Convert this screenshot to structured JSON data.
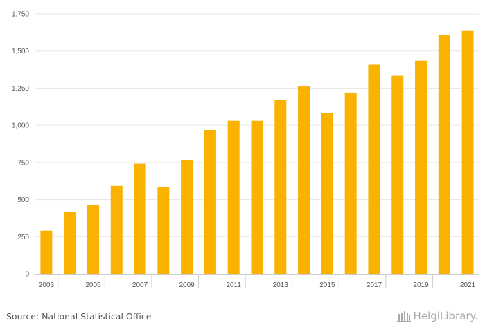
{
  "chart_data": {
    "type": "bar",
    "title": "",
    "xlabel": "",
    "ylabel": "",
    "categories": [
      "2003",
      "2004",
      "2005",
      "2006",
      "2007",
      "2008",
      "2009",
      "2010",
      "2011",
      "2012",
      "2013",
      "2014",
      "2015",
      "2016",
      "2017",
      "2018",
      "2019",
      "2020",
      "2021"
    ],
    "x_tick_labels": [
      "2003",
      "2005",
      "2007",
      "2009",
      "2011",
      "2013",
      "2015",
      "2017",
      "2019",
      "2021"
    ],
    "values": [
      290,
      415,
      462,
      592,
      742,
      582,
      765,
      968,
      1030,
      1030,
      1173,
      1265,
      1080,
      1220,
      1408,
      1333,
      1435,
      1610,
      1635
    ],
    "ylim": [
      0,
      1750
    ],
    "y_ticks": [
      0,
      250,
      500,
      750,
      1000,
      1250,
      1500,
      1750
    ],
    "y_tick_labels": [
      "0",
      "250",
      "500",
      "750",
      "1,000",
      "1,250",
      "1,500",
      "1,750"
    ],
    "grid": true,
    "bar_color": "#F9B200"
  },
  "footer": {
    "source": "Source: National Statistical Office",
    "logo_text": "HelgiLibrary."
  },
  "colors": {
    "grid": "#e6e6e6",
    "axis": "#cccccc",
    "tick_text": "#555555",
    "logo": "#aaaaaa"
  }
}
